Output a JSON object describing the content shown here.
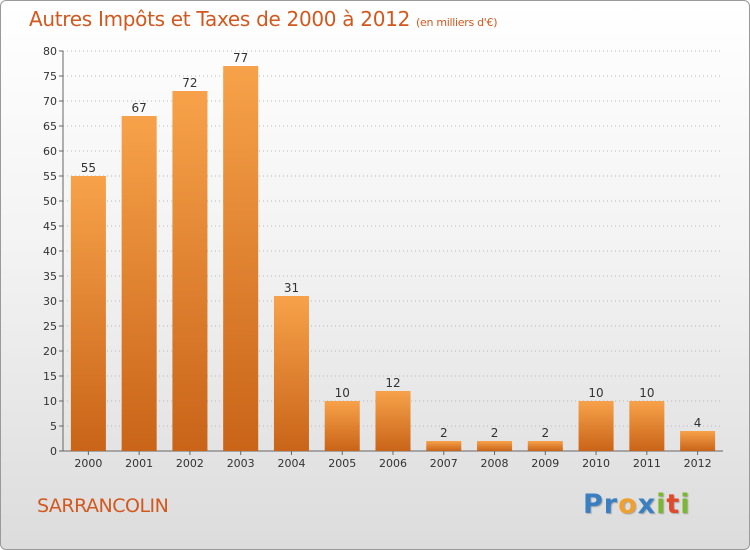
{
  "title": "Autres Impôts et Taxes de 2000 à 2012",
  "subtitle": "(en milliers d'€)",
  "commune": "SARRANCOLIN",
  "logo": {
    "text": "Proxiti",
    "letters": [
      {
        "ch": "P",
        "color": "#3a7fc1"
      },
      {
        "ch": "r",
        "color": "#3a7fc1"
      },
      {
        "ch": "o",
        "color": "#f0a030"
      },
      {
        "ch": "x",
        "color": "#3a7fc1"
      },
      {
        "ch": "i",
        "color": "#7cb82f"
      },
      {
        "ch": "t",
        "color": "#e04a2a"
      },
      {
        "ch": "i",
        "color": "#7cb82f"
      }
    ]
  },
  "colors": {
    "title": "#d2581e",
    "bar_top": "#f7a24a",
    "bar_bottom": "#c96418",
    "grid": "#b8b8b8"
  },
  "chart_data": {
    "type": "bar",
    "categories": [
      "2000",
      "2001",
      "2002",
      "2003",
      "2004",
      "2005",
      "2006",
      "2007",
      "2008",
      "2009",
      "2010",
      "2011",
      "2012"
    ],
    "values": [
      55,
      67,
      72,
      77,
      31,
      10,
      12,
      2,
      2,
      2,
      10,
      10,
      4
    ],
    "title": "Autres Impôts et Taxes de 2000 à 2012",
    "subtitle": "(en milliers d'€)",
    "xlabel": "",
    "ylabel": "",
    "ylim": [
      0,
      80
    ],
    "yticks": [
      0,
      5,
      10,
      15,
      20,
      25,
      30,
      35,
      40,
      45,
      50,
      55,
      60,
      65,
      70,
      75,
      80
    ],
    "grid": true,
    "legend": "none"
  }
}
